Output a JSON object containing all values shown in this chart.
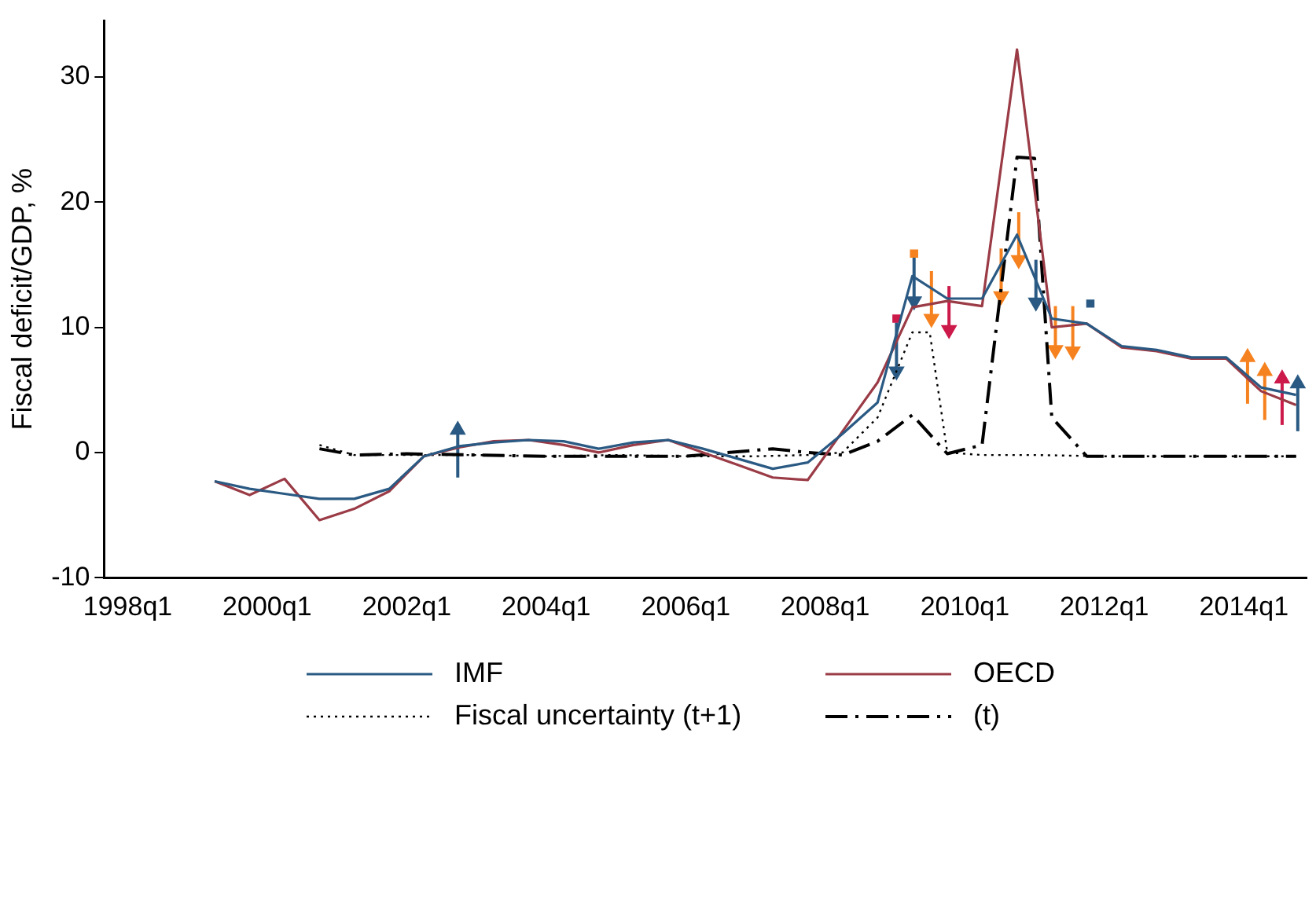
{
  "chart_data": {
    "type": "line",
    "ylabel": "Fiscal deficit/GDP, %",
    "xlim": [
      "1997-08-30",
      "2014-11-25"
    ],
    "xticks": [
      {
        "value": "1998-01",
        "label": "1998q1"
      },
      {
        "value": "2000-01",
        "label": "2000q1"
      },
      {
        "value": "2002-01",
        "label": "2002q1"
      },
      {
        "value": "2004-01",
        "label": "2004q1"
      },
      {
        "value": "2006-01",
        "label": "2006q1"
      },
      {
        "value": "2008-01",
        "label": "2008q1"
      },
      {
        "value": "2010-01",
        "label": "2010q1"
      },
      {
        "value": "2012-01",
        "label": "2012q1"
      },
      {
        "value": "2014-01",
        "label": "2014q1"
      }
    ],
    "ylim": [
      -10,
      34.5
    ],
    "yticks": [
      -10,
      0,
      10,
      20,
      30
    ],
    "grid": false,
    "legend": "bottom",
    "series": [
      {
        "name": "IMF",
        "color": "#2a5a83",
        "line_style": "solid",
        "x": [
          "1999-04",
          "1999-10",
          "2000-04",
          "2000-10",
          "2001-04",
          "2001-10",
          "2002-04",
          "2002-10",
          "2003-04",
          "2003-10",
          "2004-04",
          "2004-10",
          "2005-04",
          "2005-10",
          "2006-04",
          "2006-10",
          "2007-04",
          "2007-10",
          "2008-04",
          "2008-10",
          "2009-04",
          "2009-10",
          "2010-04",
          "2010-10",
          "2011-04",
          "2011-10",
          "2012-04",
          "2012-10",
          "2013-04",
          "2013-10",
          "2014-04",
          "2014-10"
        ],
        "values": [
          -2.3,
          -2.9,
          -3.3,
          -3.7,
          -3.7,
          -2.9,
          -0.3,
          0.5,
          0.8,
          1.0,
          0.9,
          0.3,
          0.8,
          1.0,
          0.3,
          -0.5,
          -1.3,
          -0.8,
          1.5,
          4.0,
          14.1,
          12.3,
          12.3,
          17.4,
          10.7,
          10.3,
          8.5,
          8.2,
          7.6,
          7.6,
          5.2,
          4.6
        ]
      },
      {
        "name": "OECD",
        "color": "#9a3b46",
        "line_style": "solid",
        "x": [
          "1999-04",
          "1999-10",
          "2000-04",
          "2000-10",
          "2001-04",
          "2001-10",
          "2002-04",
          "2002-10",
          "2003-04",
          "2003-10",
          "2004-04",
          "2004-10",
          "2005-04",
          "2005-10",
          "2006-04",
          "2006-10",
          "2007-04",
          "2007-10",
          "2008-04",
          "2008-10",
          "2009-04",
          "2009-10",
          "2010-04",
          "2010-10",
          "2011-04",
          "2011-10",
          "2012-04",
          "2012-10",
          "2013-04",
          "2013-10",
          "2014-04",
          "2014-10"
        ],
        "values": [
          -2.3,
          -3.4,
          -2.1,
          -5.4,
          -4.5,
          -3.1,
          -0.3,
          0.4,
          0.9,
          1.0,
          0.6,
          0.0,
          0.6,
          1.0,
          0.0,
          -1.0,
          -2.0,
          -2.2,
          1.7,
          5.6,
          11.6,
          12.1,
          11.7,
          32.2,
          10.0,
          10.3,
          8.4,
          8.1,
          7.5,
          7.5,
          4.9,
          3.8
        ]
      },
      {
        "name": "Fiscal uncertainty (t+1)",
        "color": "#000000",
        "line_style": "dotted",
        "x": [
          "2000-10",
          "2001-04",
          "2002-01",
          "2003-01",
          "2004-01",
          "2005-01",
          "2006-01",
          "2007-01",
          "2007-10",
          "2008-04",
          "2008-10",
          "2009-04",
          "2009-07",
          "2009-10",
          "2010-04",
          "2011-01",
          "2012-01",
          "2013-01",
          "2014-01",
          "2014-10"
        ],
        "values": [
          0.6,
          -0.2,
          -0.2,
          -0.2,
          -0.3,
          -0.2,
          -0.3,
          -0.3,
          -0.2,
          0.0,
          2.8,
          9.6,
          9.6,
          0.0,
          -0.2,
          -0.2,
          -0.3,
          -0.3,
          -0.3,
          -0.3
        ]
      },
      {
        "name": "(t)",
        "color": "#000000",
        "line_style": "dashdot",
        "x": [
          "2000-10",
          "2001-04",
          "2002-01",
          "2003-01",
          "2004-01",
          "2005-01",
          "2006-01",
          "2007-04",
          "2007-10",
          "2008-04",
          "2008-10",
          "2009-04",
          "2009-10",
          "2010-04",
          "2010-10",
          "2011-01",
          "2011-04",
          "2011-10",
          "2012-07",
          "2013-07",
          "2014-10"
        ],
        "values": [
          0.3,
          -0.2,
          -0.1,
          -0.2,
          -0.3,
          -0.3,
          -0.3,
          0.3,
          0.0,
          -0.2,
          0.9,
          3.0,
          -0.1,
          0.6,
          23.6,
          23.5,
          2.8,
          -0.3,
          -0.3,
          -0.3,
          -0.3
        ]
      },
      {
        "type": "scatter",
        "color": "#cc1a4a",
        "marker": "triangle",
        "x": [
          "2009-10-10",
          "2014-07-20"
        ],
        "values": [
          9.8,
          5.9
        ],
        "errors": [
          [
            9.8,
            13.3
          ],
          [
            2.2,
            5.9
          ]
        ]
      },
      {
        "type": "scatter",
        "color": "#2a5a83",
        "marker": "triangle",
        "x": [
          "2002-09-25",
          "2009-01-08",
          "2009-04-10",
          "2011-01-08",
          "2014-10-10"
        ],
        "values": [
          1.8,
          6.5,
          12.1,
          12.0,
          5.5
        ],
        "errors": [
          [
            -2.0,
            1.8
          ],
          [
            6.5,
            10.4
          ],
          [
            12.1,
            15.6
          ],
          [
            12.0,
            15.4
          ],
          [
            1.7,
            5.5
          ]
        ]
      },
      {
        "type": "scatter",
        "color": "#f5821f",
        "marker": "triangle",
        "x": [
          "2009-07-10",
          "2010-07-10",
          "2010-10-10",
          "2011-04-20",
          "2011-07-20",
          "2014-01-20",
          "2014-04-20"
        ],
        "values": [
          10.7,
          12.5,
          15.4,
          8.2,
          8.1,
          7.6,
          6.5
        ],
        "errors": [
          [
            10.7,
            14.5
          ],
          [
            12.5,
            16.3
          ],
          [
            15.4,
            19.2
          ],
          [
            8.2,
            11.7
          ],
          [
            8.1,
            11.7
          ],
          [
            3.9,
            7.6
          ],
          [
            2.6,
            6.5
          ]
        ]
      },
      {
        "type": "scatter",
        "color": "#cc1a4a",
        "marker": "square",
        "x": [
          "2009-01-08"
        ],
        "values": [
          10.7
        ]
      },
      {
        "type": "scatter",
        "color": "#2a5a83",
        "marker": "square",
        "x": [
          "2011-10-20"
        ],
        "values": [
          11.9
        ]
      },
      {
        "type": "scatter",
        "color": "#f5821f",
        "marker": "square",
        "x": [
          "2009-04-10"
        ],
        "values": [
          15.9
        ]
      }
    ]
  }
}
